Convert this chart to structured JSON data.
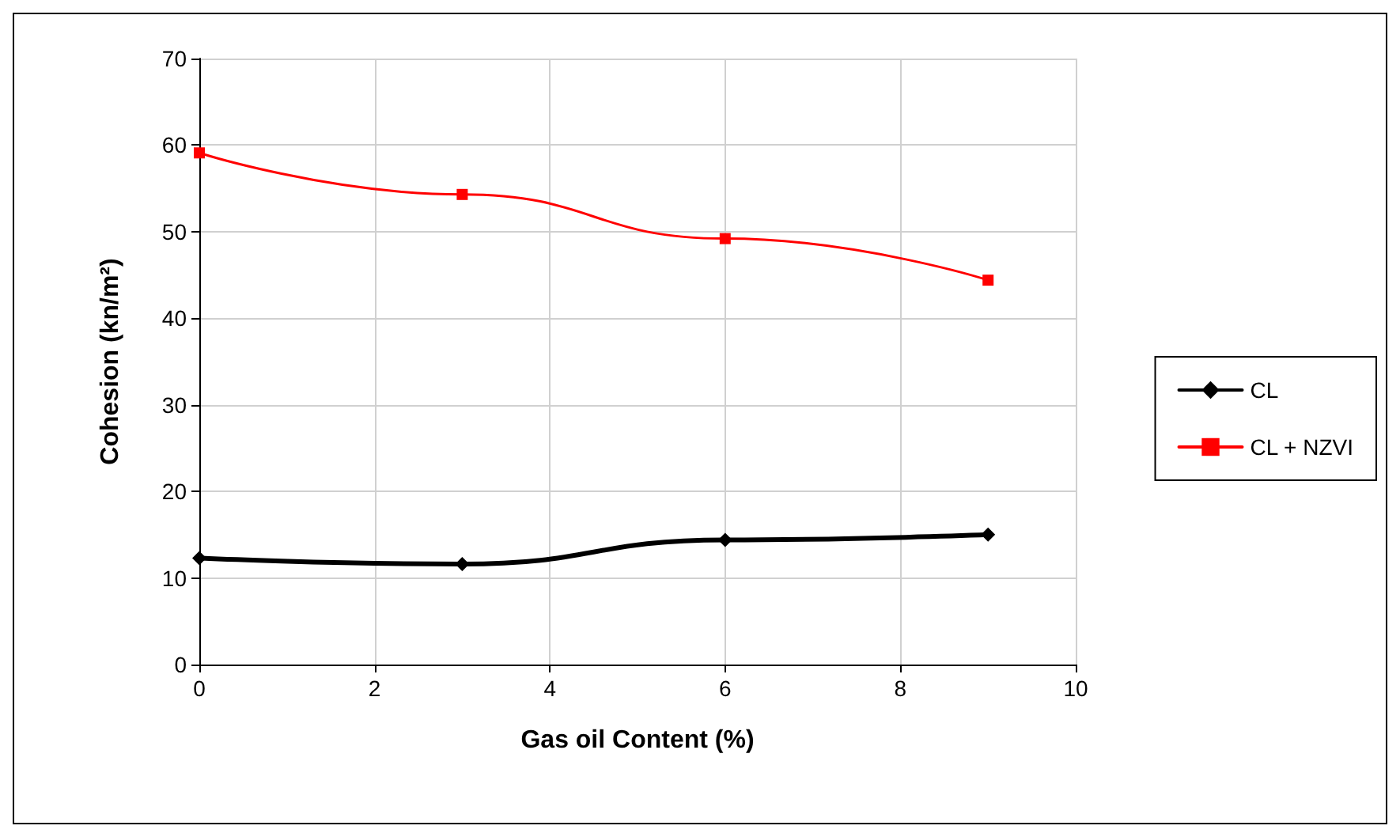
{
  "chart_data": {
    "type": "line",
    "xlabel": "Gas oil Content (%)",
    "ylabel": "Cohesion (kn/m²)",
    "x": [
      0,
      3,
      6,
      9
    ],
    "series": [
      {
        "name": "CL",
        "color": "#000000",
        "values": [
          12.3,
          11.6,
          14.4,
          15.0
        ],
        "marker": "diamond"
      },
      {
        "name": "CL + NZVI",
        "color": "#ff0000",
        "values": [
          59.1,
          54.3,
          49.2,
          44.4
        ],
        "marker": "square"
      }
    ],
    "xlim": [
      0,
      10
    ],
    "xticks": [
      0,
      2,
      4,
      6,
      8,
      10
    ],
    "ylim": [
      0,
      70
    ],
    "yticks": [
      0,
      10,
      20,
      30,
      40,
      50,
      60,
      70
    ],
    "grid": true,
    "legend": "right",
    "line_style": "solid"
  }
}
